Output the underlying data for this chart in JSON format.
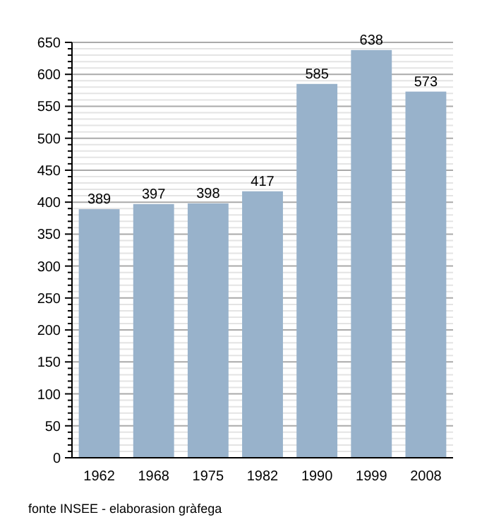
{
  "chart_data": {
    "type": "bar",
    "categories": [
      "1962",
      "1968",
      "1975",
      "1982",
      "1990",
      "1999",
      "2008"
    ],
    "values": [
      389,
      397,
      398,
      417,
      585,
      638,
      573
    ],
    "color": "#98b2cb",
    "data_labels": true,
    "ylim": [
      0,
      650
    ],
    "yticks": [
      0,
      {
        "value": 10,
        "label": null
      },
      {
        "value": 20,
        "label": null
      },
      {
        "value": 30,
        "label": null
      },
      {
        "value": 40,
        "label": null
      },
      50,
      {
        "value": 60,
        "label": null
      },
      {
        "value": 70,
        "label": null
      },
      {
        "value": 80,
        "label": null
      },
      {
        "value": 90,
        "label": null
      },
      100,
      {
        "value": 110,
        "label": null
      },
      {
        "value": 120,
        "label": null
      },
      {
        "value": 130,
        "label": null
      },
      {
        "value": 140,
        "label": null
      },
      150,
      {
        "value": 160,
        "label": null
      },
      {
        "value": 170,
        "label": null
      },
      {
        "value": 180,
        "label": null
      },
      {
        "value": 190,
        "label": null
      },
      200,
      {
        "value": 210,
        "label": null
      },
      {
        "value": 220,
        "label": null
      },
      {
        "value": 230,
        "label": null
      },
      {
        "value": 240,
        "label": null
      },
      250,
      {
        "value": 260,
        "label": null
      },
      {
        "value": 270,
        "label": null
      },
      {
        "value": 280,
        "label": null
      },
      {
        "value": 290,
        "label": null
      },
      300,
      {
        "value": 310,
        "label": null
      },
      {
        "value": 320,
        "label": null
      },
      {
        "value": 330,
        "label": null
      },
      {
        "value": 340,
        "label": null
      },
      350,
      {
        "value": 360,
        "label": null
      },
      {
        "value": 370,
        "label": null
      },
      {
        "value": 380,
        "label": null
      },
      {
        "value": 390,
        "label": null
      },
      400,
      {
        "value": 410,
        "label": null
      },
      {
        "value": 420,
        "label": null
      },
      {
        "value": 430,
        "label": null
      },
      {
        "value": 440,
        "label": null
      },
      450,
      {
        "value": 460,
        "label": null
      },
      {
        "value": 470,
        "label": null
      },
      {
        "value": 480,
        "label": null
      },
      {
        "value": 490,
        "label": null
      },
      500,
      {
        "value": 510,
        "label": null
      },
      {
        "value": 520,
        "label": null
      },
      {
        "value": 530,
        "label": null
      },
      {
        "value": 540,
        "label": null
      },
      550,
      {
        "value": 560,
        "label": null
      },
      {
        "value": 570,
        "label": null
      },
      {
        "value": 580,
        "label": null
      },
      {
        "value": 590,
        "label": null
      },
      600,
      {
        "value": 610,
        "label": null
      },
      {
        "value": 620,
        "label": null
      },
      {
        "value": 630,
        "label": null
      },
      {
        "value": 640,
        "label": null
      },
      650
    ],
    "grid": true,
    "annotations": [
      "fonte INSEE - elaborasion gràfega"
    ]
  }
}
